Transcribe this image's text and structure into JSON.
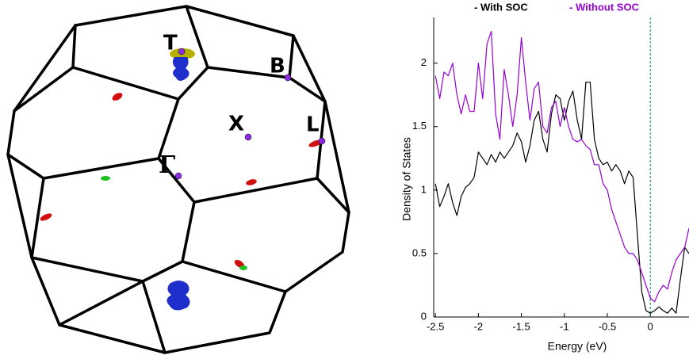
{
  "diagram": {
    "labels": [
      "T",
      "B",
      "X",
      "L",
      "Γ"
    ]
  },
  "chart_data": {
    "type": "line",
    "xlabel": "Energy (eV)",
    "ylabel": "Density of States",
    "x": [
      -2.5,
      -2.45,
      -2.4,
      -2.35,
      -2.3,
      -2.25,
      -2.2,
      -2.15,
      -2.1,
      -2.05,
      -2.0,
      -1.95,
      -1.9,
      -1.85,
      -1.8,
      -1.75,
      -1.7,
      -1.65,
      -1.6,
      -1.55,
      -1.5,
      -1.45,
      -1.4,
      -1.35,
      -1.3,
      -1.25,
      -1.2,
      -1.15,
      -1.1,
      -1.05,
      -1.0,
      -0.95,
      -0.9,
      -0.85,
      -0.8,
      -0.75,
      -0.7,
      -0.65,
      -0.6,
      -0.55,
      -0.5,
      -0.45,
      -0.4,
      -0.35,
      -0.3,
      -0.25,
      -0.2,
      -0.15,
      -0.1,
      -0.05,
      0,
      0.05,
      0.1,
      0.15,
      0.2,
      0.25,
      0.3,
      0.35,
      0.4,
      0.45
    ],
    "series": [
      {
        "name": "- With SOC",
        "color": "#000000",
        "values": [
          1.05,
          0.87,
          0.95,
          1.05,
          0.9,
          0.8,
          0.95,
          1.02,
          1.05,
          1.1,
          1.3,
          1.25,
          1.2,
          1.28,
          1.22,
          1.3,
          1.25,
          1.3,
          1.35,
          1.45,
          1.38,
          1.22,
          1.35,
          1.55,
          1.62,
          1.4,
          1.3,
          1.6,
          1.75,
          1.72,
          1.55,
          1.7,
          1.78,
          1.55,
          1.4,
          1.85,
          1.85,
          1.4,
          1.25,
          1.2,
          1.22,
          1.15,
          1.2,
          1.15,
          1.05,
          1.15,
          1.1,
          0.65,
          0.2,
          0.05,
          0.03,
          0.05,
          0.08,
          0.05,
          0.03,
          0.07,
          0.03,
          0.3,
          0.55,
          0.5
        ]
      },
      {
        "name": "- Without SOC",
        "color": "#9400d3",
        "values": [
          1.9,
          1.72,
          1.93,
          1.9,
          2.0,
          1.75,
          1.6,
          1.75,
          1.62,
          1.62,
          2.0,
          1.72,
          2.15,
          2.25,
          1.6,
          1.4,
          1.95,
          1.75,
          1.5,
          1.75,
          2.2,
          1.85,
          1.55,
          1.8,
          1.85,
          1.5,
          1.45,
          1.65,
          1.7,
          1.5,
          1.65,
          1.5,
          1.4,
          1.38,
          1.4,
          1.35,
          1.32,
          1.2,
          1.2,
          1.05,
          1.0,
          0.85,
          0.75,
          0.65,
          0.55,
          0.5,
          0.5,
          0.45,
          0.35,
          0.25,
          0.15,
          0.12,
          0.2,
          0.25,
          0.22,
          0.35,
          0.45,
          0.5,
          0.55,
          0.7
        ]
      }
    ],
    "xlim": [
      -2.52,
      0.45
    ],
    "ylim": [
      0,
      2.36
    ],
    "xticks": [
      -2.5,
      -2,
      -1.5,
      -1,
      -0.5,
      0
    ],
    "yticks": [
      0,
      0.5,
      1,
      1.5,
      2
    ],
    "reference_line": {
      "x": 0,
      "color": "#009060",
      "style": "dashed"
    }
  }
}
